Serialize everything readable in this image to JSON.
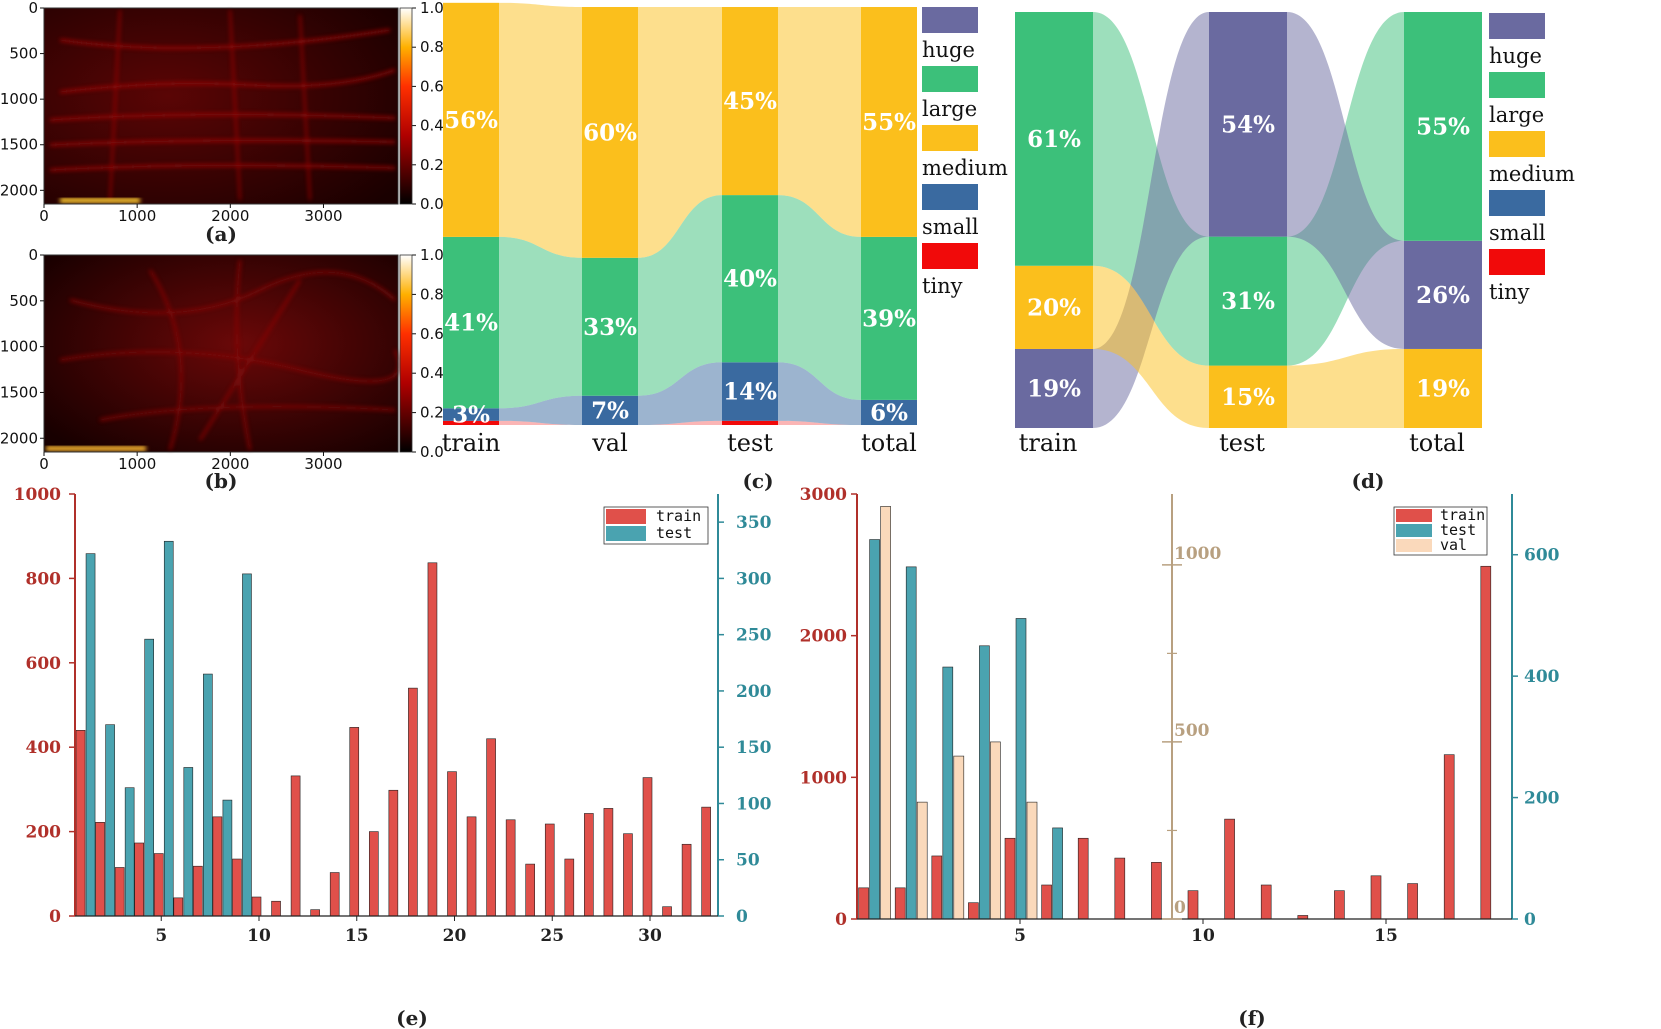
{
  "colors": {
    "huge": "#6a6aa0",
    "large": "#3cc07a",
    "medium": "#fbbf1c",
    "small": "#3a6aa0",
    "tiny": "#f10a0a",
    "train": "#e0504a",
    "test": "#4aa3b0",
    "val": "#fad9bb",
    "axis_train": "#b0302a",
    "axis_test": "#2f8a98",
    "axis_val": "#b8a080"
  },
  "panels": {
    "a": "(a)",
    "b": "(b)",
    "c": "(c)",
    "d": "(d)",
    "e": "(e)",
    "f": "(f)"
  },
  "chart_data": [
    {
      "id": "a",
      "type": "heatmap",
      "xlim": [
        0,
        3800
      ],
      "ylim": [
        0,
        2150
      ],
      "xticks": [
        "0",
        "1000",
        "2000",
        "3000"
      ],
      "yticks": [
        "0",
        "500",
        "1000",
        "1500",
        "2000"
      ],
      "colorbar_ticks": [
        "1.0",
        "0.8",
        "0.6",
        "0.4",
        "0.2",
        "0.0"
      ],
      "colormap": "hot"
    },
    {
      "id": "b",
      "type": "heatmap",
      "xlim": [
        0,
        3800
      ],
      "ylim": [
        0,
        2150
      ],
      "xticks": [
        "0",
        "1000",
        "2000",
        "3000"
      ],
      "yticks": [
        "0",
        "500",
        "1000",
        "1500",
        "2000"
      ],
      "colorbar_ticks": [
        "1.0",
        "0.8",
        "0.6",
        "0.4",
        "0.2",
        "0.0"
      ],
      "colormap": "hot"
    },
    {
      "id": "c",
      "type": "bar",
      "stacked": true,
      "categories": [
        "train",
        "val",
        "test",
        "total"
      ],
      "series": [
        {
          "name": "tiny",
          "values": [
            1,
            0,
            1,
            0
          ]
        },
        {
          "name": "small",
          "values": [
            3,
            7,
            14,
            6
          ]
        },
        {
          "name": "large",
          "values": [
            41,
            33,
            40,
            39
          ]
        },
        {
          "name": "medium",
          "values": [
            56,
            60,
            45,
            55
          ]
        },
        {
          "name": "huge",
          "values": [
            0,
            0,
            0,
            0
          ]
        }
      ],
      "labels": [
        {
          "cat": "train",
          "series": "small",
          "text": "3%"
        },
        {
          "cat": "train",
          "series": "large",
          "text": "41%"
        },
        {
          "cat": "train",
          "series": "medium",
          "text": "56%"
        },
        {
          "cat": "val",
          "series": "small",
          "text": "7%"
        },
        {
          "cat": "val",
          "series": "large",
          "text": "33%"
        },
        {
          "cat": "val",
          "series": "medium",
          "text": "60%"
        },
        {
          "cat": "test",
          "series": "small",
          "text": "14%"
        },
        {
          "cat": "test",
          "series": "large",
          "text": "40%"
        },
        {
          "cat": "test",
          "series": "medium",
          "text": "45%"
        },
        {
          "cat": "total",
          "series": "small",
          "text": "6%"
        },
        {
          "cat": "total",
          "series": "large",
          "text": "39%"
        },
        {
          "cat": "total",
          "series": "medium",
          "text": "55%"
        }
      ],
      "legend": [
        "huge",
        "large",
        "medium",
        "small",
        "tiny"
      ]
    },
    {
      "id": "d",
      "type": "bar",
      "stacked": true,
      "categories": [
        "train",
        "test",
        "total"
      ],
      "series": [
        {
          "name": "huge",
          "values": [
            19,
            54,
            26
          ]
        },
        {
          "name": "medium",
          "values": [
            20,
            15,
            19
          ]
        },
        {
          "name": "large",
          "values": [
            61,
            31,
            55
          ]
        }
      ],
      "stack_order": [
        [
          "huge",
          "medium",
          "large"
        ],
        [
          "medium",
          "large",
          "huge"
        ],
        [
          "medium",
          "huge",
          "large"
        ]
      ],
      "labels": [
        {
          "cat": "train",
          "series": "huge",
          "text": "19%"
        },
        {
          "cat": "train",
          "series": "medium",
          "text": "20%"
        },
        {
          "cat": "train",
          "series": "large",
          "text": "61%"
        },
        {
          "cat": "test",
          "series": "medium",
          "text": "15%"
        },
        {
          "cat": "test",
          "series": "large",
          "text": "31%"
        },
        {
          "cat": "test",
          "series": "huge",
          "text": "54%"
        },
        {
          "cat": "total",
          "series": "medium",
          "text": "19%"
        },
        {
          "cat": "total",
          "series": "huge",
          "text": "26%"
        },
        {
          "cat": "total",
          "series": "large",
          "text": "55%"
        }
      ],
      "legend": [
        "huge",
        "large",
        "medium",
        "small",
        "tiny"
      ]
    },
    {
      "id": "e",
      "type": "bar",
      "x": [
        1,
        2,
        3,
        4,
        5,
        6,
        7,
        8,
        9,
        10,
        11,
        12,
        13,
        14,
        15,
        16,
        17,
        18,
        19,
        20,
        21,
        22,
        23,
        24,
        25,
        26,
        27,
        28,
        29,
        30,
        31,
        32,
        33
      ],
      "series": [
        {
          "name": "train",
          "axis": "left",
          "values": [
            440,
            222,
            115,
            173,
            148,
            43,
            118,
            235,
            135,
            45,
            35,
            332,
            15,
            103,
            447,
            200,
            298,
            540,
            837,
            342,
            235,
            420,
            228,
            123,
            218,
            135,
            243,
            255,
            195,
            328,
            22,
            170,
            258
          ]
        },
        {
          "name": "test",
          "axis": "right",
          "values": [
            322,
            170,
            114,
            246,
            333,
            132,
            215,
            103,
            304,
            0,
            0,
            0,
            0,
            0,
            0,
            0,
            0,
            0,
            0,
            0,
            0,
            0,
            0,
            0,
            0,
            0,
            0,
            0,
            0,
            0,
            0,
            0,
            0
          ]
        }
      ],
      "ylim_left": [
        0,
        1000
      ],
      "ylim_right": [
        0,
        375
      ],
      "yticks_left": [
        "0",
        "200",
        "400",
        "600",
        "800",
        "1000"
      ],
      "yticks_right": [
        "0",
        "50",
        "100",
        "150",
        "200",
        "250",
        "300",
        "350"
      ],
      "xticks": [
        "5",
        "10",
        "15",
        "20",
        "25",
        "30"
      ],
      "legend": [
        "train",
        "test"
      ],
      "legend_position": "top-right"
    },
    {
      "id": "f",
      "type": "bar",
      "x": [
        1,
        2,
        3,
        4,
        5,
        6,
        7,
        8,
        9,
        10,
        11,
        12,
        13,
        14,
        15,
        16,
        17,
        18
      ],
      "series": [
        {
          "name": "train",
          "axis": "left",
          "values": [
            220,
            220,
            445,
            115,
            570,
            240,
            570,
            430,
            400,
            200,
            705,
            240,
            25,
            200,
            305,
            250,
            1160,
            2490
          ]
        },
        {
          "name": "test",
          "axis": "right",
          "values": [
            625,
            580,
            415,
            450,
            495,
            150,
            0,
            0,
            0,
            0,
            0,
            0,
            0,
            0,
            0,
            0,
            0,
            0
          ]
        },
        {
          "name": "val",
          "axis": "middle",
          "values": [
            1165,
            330,
            460,
            500,
            330,
            0,
            0,
            0,
            0,
            0,
            0,
            0,
            0,
            0,
            0,
            0,
            0,
            0
          ]
        }
      ],
      "ylim_left": [
        0,
        3000
      ],
      "ylim_right": [
        0,
        700
      ],
      "ylim_middle": [
        0,
        1200
      ],
      "yticks_left": [
        "0",
        "1000",
        "2000",
        "3000"
      ],
      "yticks_right": [
        "0",
        "200",
        "400",
        "600"
      ],
      "yticks_middle": [
        "0",
        "500",
        "1000"
      ],
      "xticks": [
        "5",
        "10",
        "15"
      ],
      "legend": [
        "train",
        "test",
        "val"
      ],
      "legend_position": "top-right"
    }
  ]
}
